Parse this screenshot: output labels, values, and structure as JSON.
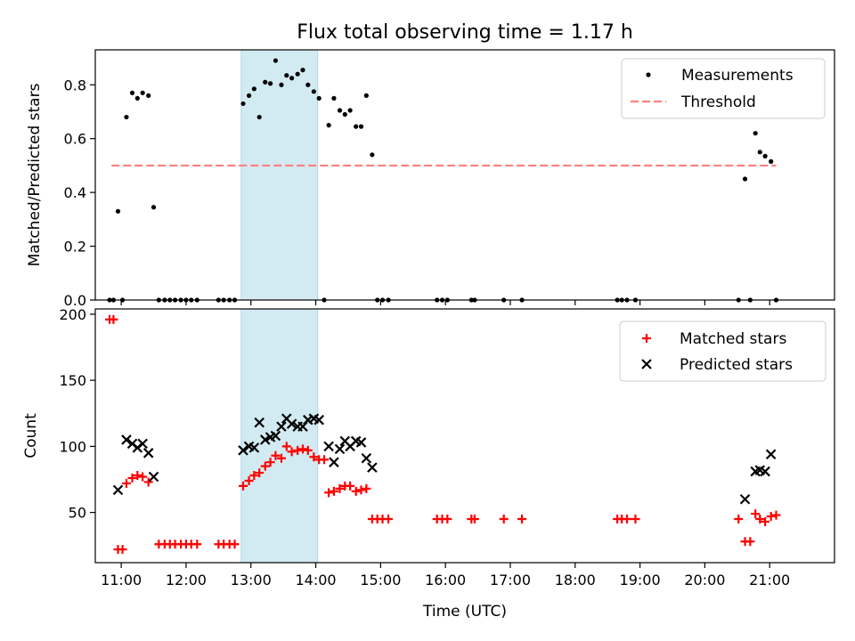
{
  "title": "Flux total observing time = 1.17 h",
  "chart_data": [
    {
      "type": "scatter",
      "panel": "top",
      "ylabel": "Matched/Predicted stars",
      "ylim": [
        0,
        0.93
      ],
      "yticks": [
        0.0,
        0.2,
        0.4,
        0.6,
        0.8
      ],
      "ytick_labels": [
        "0.0",
        "0.2",
        "0.4",
        "0.6",
        "0.8"
      ],
      "xlim": [
        10.6,
        22.0
      ],
      "highlight_span": [
        12.85,
        14.03
      ],
      "highlight_color": "#add8e6",
      "legend": "top-right",
      "threshold": {
        "name": "Threshold",
        "value": 0.5,
        "x": [
          10.85,
          21.1
        ],
        "color": "#ff7f7f"
      },
      "series": [
        {
          "name": "Measurements",
          "color": "#000000",
          "points": [
            [
              10.82,
              0
            ],
            [
              10.88,
              0
            ],
            [
              10.95,
              0.33
            ],
            [
              11.02,
              0
            ],
            [
              11.08,
              0.68
            ],
            [
              11.17,
              0.77
            ],
            [
              11.25,
              0.75
            ],
            [
              11.33,
              0.77
            ],
            [
              11.42,
              0.76
            ],
            [
              11.5,
              0.345
            ],
            [
              11.58,
              0
            ],
            [
              11.67,
              0
            ],
            [
              11.75,
              0
            ],
            [
              11.83,
              0
            ],
            [
              11.92,
              0
            ],
            [
              12.0,
              0
            ],
            [
              12.08,
              0
            ],
            [
              12.17,
              0
            ],
            [
              12.5,
              0
            ],
            [
              12.58,
              0
            ],
            [
              12.67,
              0
            ],
            [
              12.75,
              0
            ],
            [
              12.88,
              0.73
            ],
            [
              12.97,
              0.76
            ],
            [
              13.05,
              0.785
            ],
            [
              13.13,
              0.68
            ],
            [
              13.22,
              0.81
            ],
            [
              13.3,
              0.805
            ],
            [
              13.38,
              0.89
            ],
            [
              13.47,
              0.8
            ],
            [
              13.55,
              0.835
            ],
            [
              13.63,
              0.825
            ],
            [
              13.72,
              0.84
            ],
            [
              13.8,
              0.855
            ],
            [
              13.88,
              0.8
            ],
            [
              13.97,
              0.775
            ],
            [
              14.05,
              0.75
            ],
            [
              14.13,
              0
            ],
            [
              14.2,
              0.65
            ],
            [
              14.28,
              0.75
            ],
            [
              14.37,
              0.705
            ],
            [
              14.45,
              0.69
            ],
            [
              14.53,
              0.705
            ],
            [
              14.62,
              0.645
            ],
            [
              14.7,
              0.645
            ],
            [
              14.78,
              0.76
            ],
            [
              14.87,
              0.54
            ],
            [
              14.95,
              0
            ],
            [
              15.03,
              0
            ],
            [
              15.12,
              0
            ],
            [
              15.87,
              0
            ],
            [
              15.95,
              0
            ],
            [
              16.03,
              0
            ],
            [
              16.4,
              0
            ],
            [
              16.45,
              0
            ],
            [
              16.9,
              0
            ],
            [
              17.18,
              0
            ],
            [
              18.65,
              0
            ],
            [
              18.72,
              0
            ],
            [
              18.8,
              0
            ],
            [
              18.93,
              0
            ],
            [
              20.52,
              0
            ],
            [
              20.62,
              0.45
            ],
            [
              20.7,
              0
            ],
            [
              20.78,
              0.62
            ],
            [
              20.85,
              0.55
            ],
            [
              20.93,
              0.535
            ],
            [
              21.02,
              0.515
            ],
            [
              21.1,
              0
            ]
          ]
        }
      ]
    },
    {
      "type": "scatter",
      "panel": "bottom",
      "ylabel": "Count",
      "xlabel": "Time (UTC)",
      "ylim": [
        12,
        204
      ],
      "yticks": [
        50,
        100,
        150,
        200
      ],
      "ytick_labels": [
        "50",
        "100",
        "150",
        "200"
      ],
      "xlim": [
        10.6,
        22.0
      ],
      "xticks": [
        11,
        12,
        13,
        14,
        15,
        16,
        17,
        18,
        19,
        20,
        21
      ],
      "xtick_labels": [
        "11:00",
        "12:00",
        "13:00",
        "14:00",
        "15:00",
        "16:00",
        "17:00",
        "18:00",
        "19:00",
        "20:00",
        "21:00"
      ],
      "highlight_span": [
        12.85,
        14.03
      ],
      "highlight_color": "#add8e6",
      "legend": "top-right",
      "series": [
        {
          "name": "Matched stars",
          "marker": "plus",
          "color": "#ff0000",
          "points": [
            [
              10.82,
              196
            ],
            [
              10.88,
              196
            ],
            [
              10.95,
              22
            ],
            [
              11.02,
              22
            ],
            [
              11.08,
              72
            ],
            [
              11.17,
              76
            ],
            [
              11.25,
              78
            ],
            [
              11.33,
              77
            ],
            [
              11.42,
              73
            ],
            [
              11.58,
              26
            ],
            [
              11.67,
              26
            ],
            [
              11.75,
              26
            ],
            [
              11.83,
              26
            ],
            [
              11.92,
              26
            ],
            [
              12.0,
              26
            ],
            [
              12.08,
              26
            ],
            [
              12.17,
              26
            ],
            [
              12.5,
              26
            ],
            [
              12.58,
              26
            ],
            [
              12.67,
              26
            ],
            [
              12.75,
              26
            ],
            [
              12.88,
              70
            ],
            [
              12.97,
              74
            ],
            [
              13.05,
              78
            ],
            [
              13.13,
              80
            ],
            [
              13.22,
              85
            ],
            [
              13.3,
              88
            ],
            [
              13.38,
              93
            ],
            [
              13.47,
              91
            ],
            [
              13.55,
              100
            ],
            [
              13.63,
              96
            ],
            [
              13.72,
              97
            ],
            [
              13.8,
              98
            ],
            [
              13.88,
              97
            ],
            [
              13.97,
              92
            ],
            [
              14.05,
              90
            ],
            [
              14.13,
              90
            ],
            [
              14.2,
              65
            ],
            [
              14.28,
              66
            ],
            [
              14.37,
              68
            ],
            [
              14.45,
              70
            ],
            [
              14.53,
              70
            ],
            [
              14.62,
              66
            ],
            [
              14.7,
              67
            ],
            [
              14.78,
              68
            ],
            [
              14.87,
              45
            ],
            [
              14.95,
              45
            ],
            [
              15.03,
              45
            ],
            [
              15.12,
              45
            ],
            [
              15.87,
              45
            ],
            [
              15.95,
              45
            ],
            [
              16.03,
              45
            ],
            [
              16.4,
              45
            ],
            [
              16.45,
              45
            ],
            [
              16.9,
              45
            ],
            [
              17.18,
              45
            ],
            [
              18.65,
              45
            ],
            [
              18.72,
              45
            ],
            [
              18.8,
              45
            ],
            [
              18.93,
              45
            ],
            [
              20.52,
              45
            ],
            [
              20.62,
              28
            ],
            [
              20.7,
              28
            ],
            [
              20.78,
              49
            ],
            [
              20.85,
              45
            ],
            [
              20.93,
              43
            ],
            [
              21.02,
              47
            ],
            [
              21.1,
              48
            ]
          ]
        },
        {
          "name": "Predicted stars",
          "marker": "x",
          "color": "#000000",
          "points": [
            [
              10.95,
              67
            ],
            [
              11.08,
              105
            ],
            [
              11.17,
              102
            ],
            [
              11.25,
              99
            ],
            [
              11.33,
              102
            ],
            [
              11.42,
              95
            ],
            [
              11.5,
              77
            ],
            [
              12.88,
              97
            ],
            [
              12.97,
              100
            ],
            [
              13.05,
              99
            ],
            [
              13.13,
              118
            ],
            [
              13.22,
              105
            ],
            [
              13.3,
              107
            ],
            [
              13.38,
              108
            ],
            [
              13.47,
              115
            ],
            [
              13.55,
              121
            ],
            [
              13.63,
              117
            ],
            [
              13.72,
              115
            ],
            [
              13.8,
              115
            ],
            [
              13.88,
              120
            ],
            [
              13.97,
              121
            ],
            [
              14.05,
              120
            ],
            [
              14.2,
              100
            ],
            [
              14.28,
              88
            ],
            [
              14.37,
              98
            ],
            [
              14.45,
              104
            ],
            [
              14.53,
              100
            ],
            [
              14.62,
              104
            ],
            [
              14.7,
              103
            ],
            [
              14.78,
              91
            ],
            [
              14.87,
              84
            ],
            [
              20.62,
              60
            ],
            [
              20.78,
              81
            ],
            [
              20.85,
              82
            ],
            [
              20.93,
              81
            ],
            [
              21.02,
              94
            ]
          ]
        }
      ]
    }
  ]
}
